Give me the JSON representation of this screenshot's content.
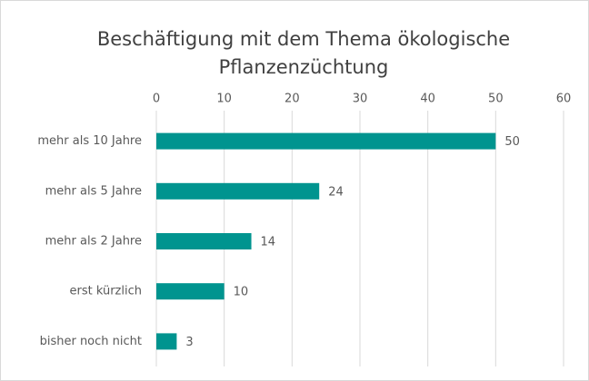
{
  "chart_data": {
    "type": "bar",
    "orientation": "horizontal",
    "title": "Beschäftigung mit dem Thema ökologische Pflanzenzüchtung",
    "categories": [
      "mehr als 10 Jahre",
      "mehr als 5 Jahre",
      "mehr als 2 Jahre",
      "erst kürzlich",
      "bisher noch nicht"
    ],
    "values": [
      50,
      24,
      14,
      10,
      3
    ],
    "color": "#00948f",
    "xlim": [
      0,
      60
    ],
    "xticks": [
      0,
      10,
      20,
      30,
      40,
      50,
      60
    ],
    "grid": true
  }
}
